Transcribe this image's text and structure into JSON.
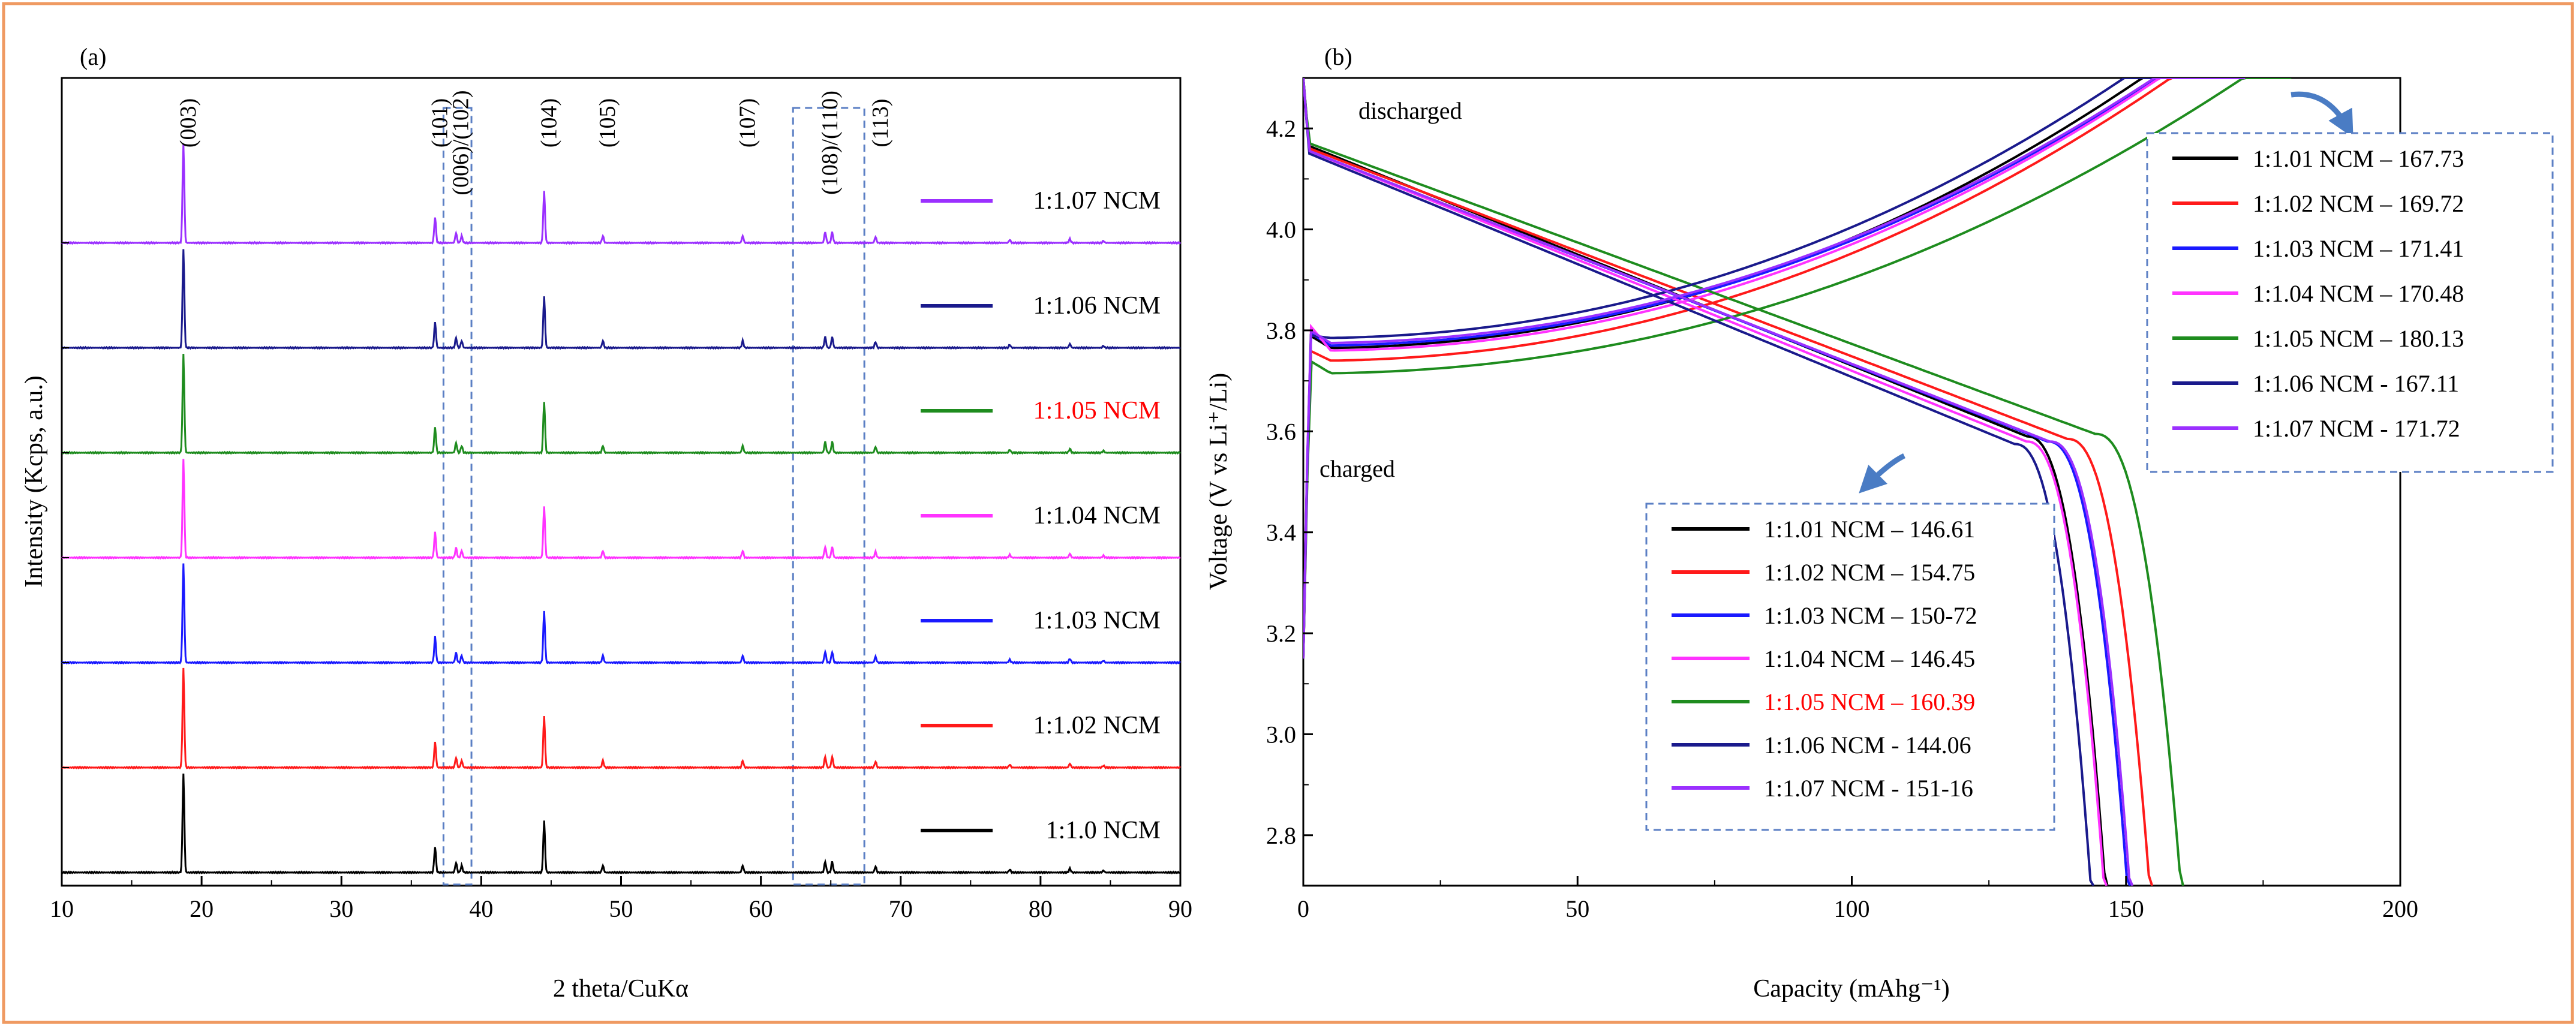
{
  "figure": {
    "border_color": "#ef9a62"
  },
  "chart_data": [
    {
      "id": "a",
      "type": "line",
      "panel_label": "(a)",
      "title": "",
      "xlabel": "2 theta/CuKα",
      "ylabel": "Intensity (Kcps, a.u.)",
      "xlim": [
        10,
        90
      ],
      "xticks": [
        10,
        20,
        30,
        40,
        50,
        60,
        70,
        80,
        90
      ],
      "grid": false,
      "offset_stacked": true,
      "peaks": [
        {
          "x": 18.7,
          "h": 1.0,
          "label": "(003)"
        },
        {
          "x": 36.7,
          "h": 0.26,
          "label": "(101)"
        },
        {
          "x": 38.2,
          "h": 0.1,
          "label": "(006)/(102)"
        },
        {
          "x": 38.6,
          "h": 0.07,
          "label": ""
        },
        {
          "x": 44.5,
          "h": 0.52,
          "label": "(104)"
        },
        {
          "x": 48.7,
          "h": 0.07,
          "label": "(105)"
        },
        {
          "x": 58.7,
          "h": 0.07,
          "label": "(107)"
        },
        {
          "x": 64.6,
          "h": 0.11,
          "label": "(108)/(110)"
        },
        {
          "x": 65.1,
          "h": 0.11,
          "label": ""
        },
        {
          "x": 68.2,
          "h": 0.06,
          "label": "(113)"
        },
        {
          "x": 77.8,
          "h": 0.03,
          "label": ""
        },
        {
          "x": 82.1,
          "h": 0.04,
          "label": ""
        },
        {
          "x": 84.5,
          "h": 0.02,
          "label": ""
        }
      ],
      "highlight_ranges": [
        [
          37.3,
          39.3
        ],
        [
          62.3,
          67.4
        ]
      ],
      "series": [
        {
          "name": "1:1.0 NCM",
          "color": "#000000",
          "label_color": "#000000",
          "baseline": 0.0
        },
        {
          "name": "1:1.02 NCM",
          "color": "#ff1a1a",
          "label_color": "#000000",
          "baseline": 1.0
        },
        {
          "name": "1:1.03 NCM",
          "color": "#1a1aff",
          "label_color": "#000000",
          "baseline": 2.0
        },
        {
          "name": "1:1.04 NCM",
          "color": "#ff33ff",
          "label_color": "#000000",
          "baseline": 3.0
        },
        {
          "name": "1:1.05 NCM",
          "color": "#1e8c1e",
          "label_color": "#ff0000",
          "baseline": 4.0
        },
        {
          "name": "1:1.06 NCM",
          "color": "#1a1a8c",
          "label_color": "#000000",
          "baseline": 5.0
        },
        {
          "name": "1:1.07 NCM",
          "color": "#9b30ff",
          "label_color": "#000000",
          "baseline": 6.0
        }
      ]
    },
    {
      "id": "b",
      "type": "line",
      "panel_label": "(b)",
      "title": "",
      "xlabel": "Capacity  (mAhg⁻¹)",
      "ylabel": "Voltage (V vs Li⁺/Li)",
      "xlim": [
        0,
        200
      ],
      "ylim": [
        2.7,
        4.3
      ],
      "xticks": [
        0,
        50,
        100,
        150,
        200
      ],
      "yticks": [
        2.8,
        3.0,
        3.2,
        3.4,
        3.6,
        3.8,
        4.0,
        4.2
      ],
      "ytick_labels": [
        "2.8",
        "3.0",
        "3.2",
        "3.4",
        "3.6",
        "3.8",
        "4.0",
        "4.2"
      ],
      "grid": false,
      "annotations": [
        "discharged",
        "charged"
      ],
      "charge_legend": [
        {
          "text": "1:1.01 NCM – 167.73",
          "color": "#000000",
          "label_color": "#000000"
        },
        {
          "text": "1:1.02 NCM – 169.72",
          "color": "#ff1a1a",
          "label_color": "#000000"
        },
        {
          "text": "1:1.03 NCM – 171.41",
          "color": "#1a1aff",
          "label_color": "#000000"
        },
        {
          "text": "1:1.04 NCM – 170.48",
          "color": "#ff33ff",
          "label_color": "#000000"
        },
        {
          "text": "1:1.05 NCM – 180.13",
          "color": "#1e8c1e",
          "label_color": "#000000"
        },
        {
          "text": "1:1.06 NCM - 167.11",
          "color": "#1a1a8c",
          "label_color": "#000000"
        },
        {
          "text": "1:1.07 NCM - 171.72",
          "color": "#9b30ff",
          "label_color": "#000000"
        }
      ],
      "discharge_legend": [
        {
          "text": "1:1.01 NCM – 146.61",
          "color": "#000000",
          "label_color": "#000000"
        },
        {
          "text": "1:1.02 NCM – 154.75",
          "color": "#ff1a1a",
          "label_color": "#000000"
        },
        {
          "text": "1:1.03 NCM – 150-72",
          "color": "#1a1aff",
          "label_color": "#000000"
        },
        {
          "text": "1:1.04 NCM – 146.45",
          "color": "#ff33ff",
          "label_color": "#000000"
        },
        {
          "text": "1:1.05 NCM – 160.39",
          "color": "#1e8c1e",
          "label_color": "#ff0000"
        },
        {
          "text": "1:1.06 NCM - 144.06",
          "color": "#1a1a8c",
          "label_color": "#000000"
        },
        {
          "text": "1:1.07 NCM - 151-16",
          "color": "#9b30ff",
          "label_color": "#000000"
        }
      ],
      "series": [
        {
          "name": "1:1.01 NCM",
          "color": "#000000",
          "charge": {
            "capacity": 167.73,
            "plateau": 3.765,
            "knee": 3.79
          },
          "discharge": {
            "capacity": 146.61,
            "start": 4.28
          }
        },
        {
          "name": "1:1.02 NCM",
          "color": "#ff1a1a",
          "charge": {
            "capacity": 169.72,
            "plateau": 3.74,
            "knee": 3.76
          },
          "discharge": {
            "capacity": 154.75,
            "start": 4.275
          }
        },
        {
          "name": "1:1.03 NCM",
          "color": "#1a1aff",
          "charge": {
            "capacity": 171.41,
            "plateau": 3.77,
            "knee": 3.795
          },
          "discharge": {
            "capacity": 150.72,
            "start": 4.27
          }
        },
        {
          "name": "1:1.04 NCM",
          "color": "#ff33ff",
          "charge": {
            "capacity": 170.48,
            "plateau": 3.76,
            "knee": 3.81
          },
          "discharge": {
            "capacity": 146.45,
            "start": 4.27
          }
        },
        {
          "name": "1:1.05 NCM",
          "color": "#1e8c1e",
          "charge": {
            "capacity": 180.13,
            "plateau": 3.715,
            "knee": 3.74
          },
          "discharge": {
            "capacity": 160.39,
            "start": 4.285
          }
        },
        {
          "name": "1:1.06 NCM",
          "color": "#1a1a8c",
          "charge": {
            "capacity": 167.11,
            "plateau": 3.785,
            "knee": 3.79
          },
          "discharge": {
            "capacity": 144.06,
            "start": 4.265
          }
        },
        {
          "name": "1:1.07 NCM",
          "color": "#9b30ff",
          "charge": {
            "capacity": 171.72,
            "plateau": 3.775,
            "knee": 3.8
          },
          "discharge": {
            "capacity": 151.16,
            "start": 4.27
          }
        }
      ]
    }
  ]
}
